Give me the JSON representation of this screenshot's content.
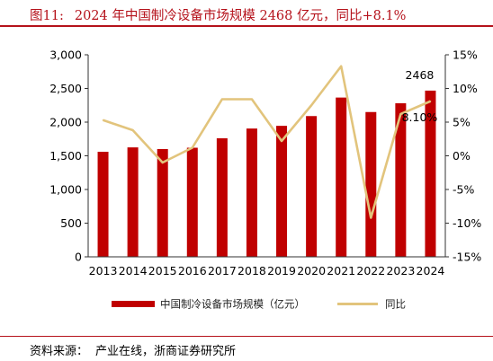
{
  "figure": {
    "number": "图11:",
    "title": "2024 年中国制冷设备市场规模 2468 亿元，同比+8.1%"
  },
  "source": {
    "label": "资料来源：",
    "text": "产业在线，浙商证券研究所"
  },
  "colors": {
    "bar": "#c00000",
    "line": "#e2c47c",
    "title": "#b5121b"
  },
  "chart_data": {
    "type": "bar",
    "categories": [
      "2013",
      "2014",
      "2015",
      "2016",
      "2017",
      "2018",
      "2019",
      "2020",
      "2021",
      "2022",
      "2023",
      "2024"
    ],
    "series": [
      {
        "name": "中国制冷设备市场规模（亿元）",
        "type": "bar",
        "axis": "left",
        "values": [
          1560,
          1625,
          1600,
          1620,
          1760,
          1905,
          1945,
          2090,
          2365,
          2150,
          2280,
          2468
        ]
      },
      {
        "name": "同比",
        "type": "line",
        "axis": "right",
        "values": [
          5.3,
          3.8,
          -1.0,
          1.2,
          8.4,
          8.4,
          2.2,
          7.5,
          13.3,
          -9.2,
          6.2,
          8.1
        ]
      }
    ],
    "left_axis": {
      "min": 0,
      "max": 3000,
      "ticks": [
        "0",
        "500",
        "1,000",
        "1,500",
        "2,000",
        "2,500",
        "3,000"
      ]
    },
    "right_axis": {
      "min": -15,
      "max": 15,
      "ticks": [
        "-15%",
        "-10%",
        "-5%",
        "0%",
        "5%",
        "10%",
        "15%"
      ]
    },
    "annotations": [
      {
        "text": "2468",
        "series": 0,
        "index": 11
      },
      {
        "text": "8.10%",
        "series": 1,
        "index": 11
      }
    ],
    "legend_position": "bottom",
    "grid": false
  }
}
